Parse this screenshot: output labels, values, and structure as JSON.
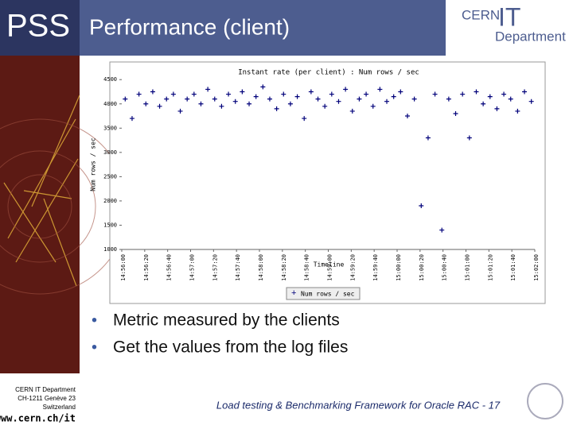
{
  "header": {
    "logo": "PSS",
    "title": "Performance (client)",
    "brand_top": "CERN",
    "brand_it": "IT",
    "brand_bottom": "Department"
  },
  "chart_data": {
    "type": "scatter",
    "title": "Instant rate (per client) : Num rows / sec",
    "y_label": "Num rows / sec",
    "x_label": "Timeline",
    "x": [
      "14:56:03",
      "14:56:09",
      "14:56:15",
      "14:56:21",
      "14:56:27",
      "14:56:33",
      "14:56:39",
      "14:56:45",
      "14:56:51",
      "14:56:57",
      "14:57:03",
      "14:57:09",
      "14:57:15",
      "14:57:21",
      "14:57:27",
      "14:57:33",
      "14:57:39",
      "14:57:45",
      "14:57:51",
      "14:57:57",
      "14:58:03",
      "14:58:09",
      "14:58:15",
      "14:58:21",
      "14:58:27",
      "14:58:33",
      "14:58:39",
      "14:58:45",
      "14:58:51",
      "14:58:57",
      "14:59:03",
      "14:59:09",
      "14:59:15",
      "14:59:21",
      "14:59:27",
      "14:59:33",
      "14:59:39",
      "14:59:45",
      "14:59:51",
      "14:59:57",
      "15:00:03",
      "15:00:09",
      "15:00:15",
      "15:00:21",
      "15:00:27",
      "15:00:33",
      "15:00:39",
      "15:00:45",
      "15:00:51",
      "15:00:57",
      "15:01:03",
      "15:01:09",
      "15:01:15",
      "15:01:21",
      "15:01:27",
      "15:01:33",
      "15:01:39",
      "15:01:45",
      "15:01:51",
      "15:01:57"
    ],
    "series": [
      {
        "name": "Num rows / sec",
        "color": "#00007a",
        "values": [
          4100,
          3700,
          4200,
          4000,
          4250,
          3950,
          4100,
          4200,
          3850,
          4100,
          4200,
          4000,
          4300,
          4100,
          3950,
          4200,
          4050,
          4250,
          4000,
          4150,
          4350,
          4100,
          3900,
          4200,
          4000,
          4150,
          3700,
          4250,
          4100,
          3950,
          4200,
          4050,
          4300,
          3850,
          4100,
          4200,
          3950,
          4300,
          4050,
          4150,
          4250,
          3750,
          4100,
          1900,
          3300,
          4200,
          1400,
          4100,
          3800,
          4200,
          3300,
          4250,
          4000,
          4150,
          3900,
          4200,
          4100,
          3850,
          4250,
          4050
        ]
      }
    ],
    "xlim": [
      "14:56:00",
      "15:02:00"
    ],
    "xticks": [
      "14:56:00",
      "14:56:20",
      "14:56:40",
      "14:57:00",
      "14:57:20",
      "14:57:40",
      "14:58:00",
      "14:58:20",
      "14:58:40",
      "14:59:00",
      "14:59:20",
      "14:59:40",
      "15:00:00",
      "15:00:20",
      "15:00:40",
      "15:01:00",
      "15:01:20",
      "15:01:40",
      "15:02:00"
    ],
    "ylim": [
      1000,
      4700
    ],
    "yticks": [
      1000,
      1500,
      2000,
      2500,
      3000,
      3500,
      4000,
      4500
    ],
    "grid": false
  },
  "bullets": [
    "Metric measured by the clients",
    "Get the values from the log files"
  ],
  "footer": {
    "address": [
      "CERN IT Department",
      "CH-1211 Genève 23",
      "Switzerland"
    ],
    "url": "www.cern.ch/it",
    "caption": "Load testing & Benchmarking Framework for Oracle RAC - 17"
  }
}
